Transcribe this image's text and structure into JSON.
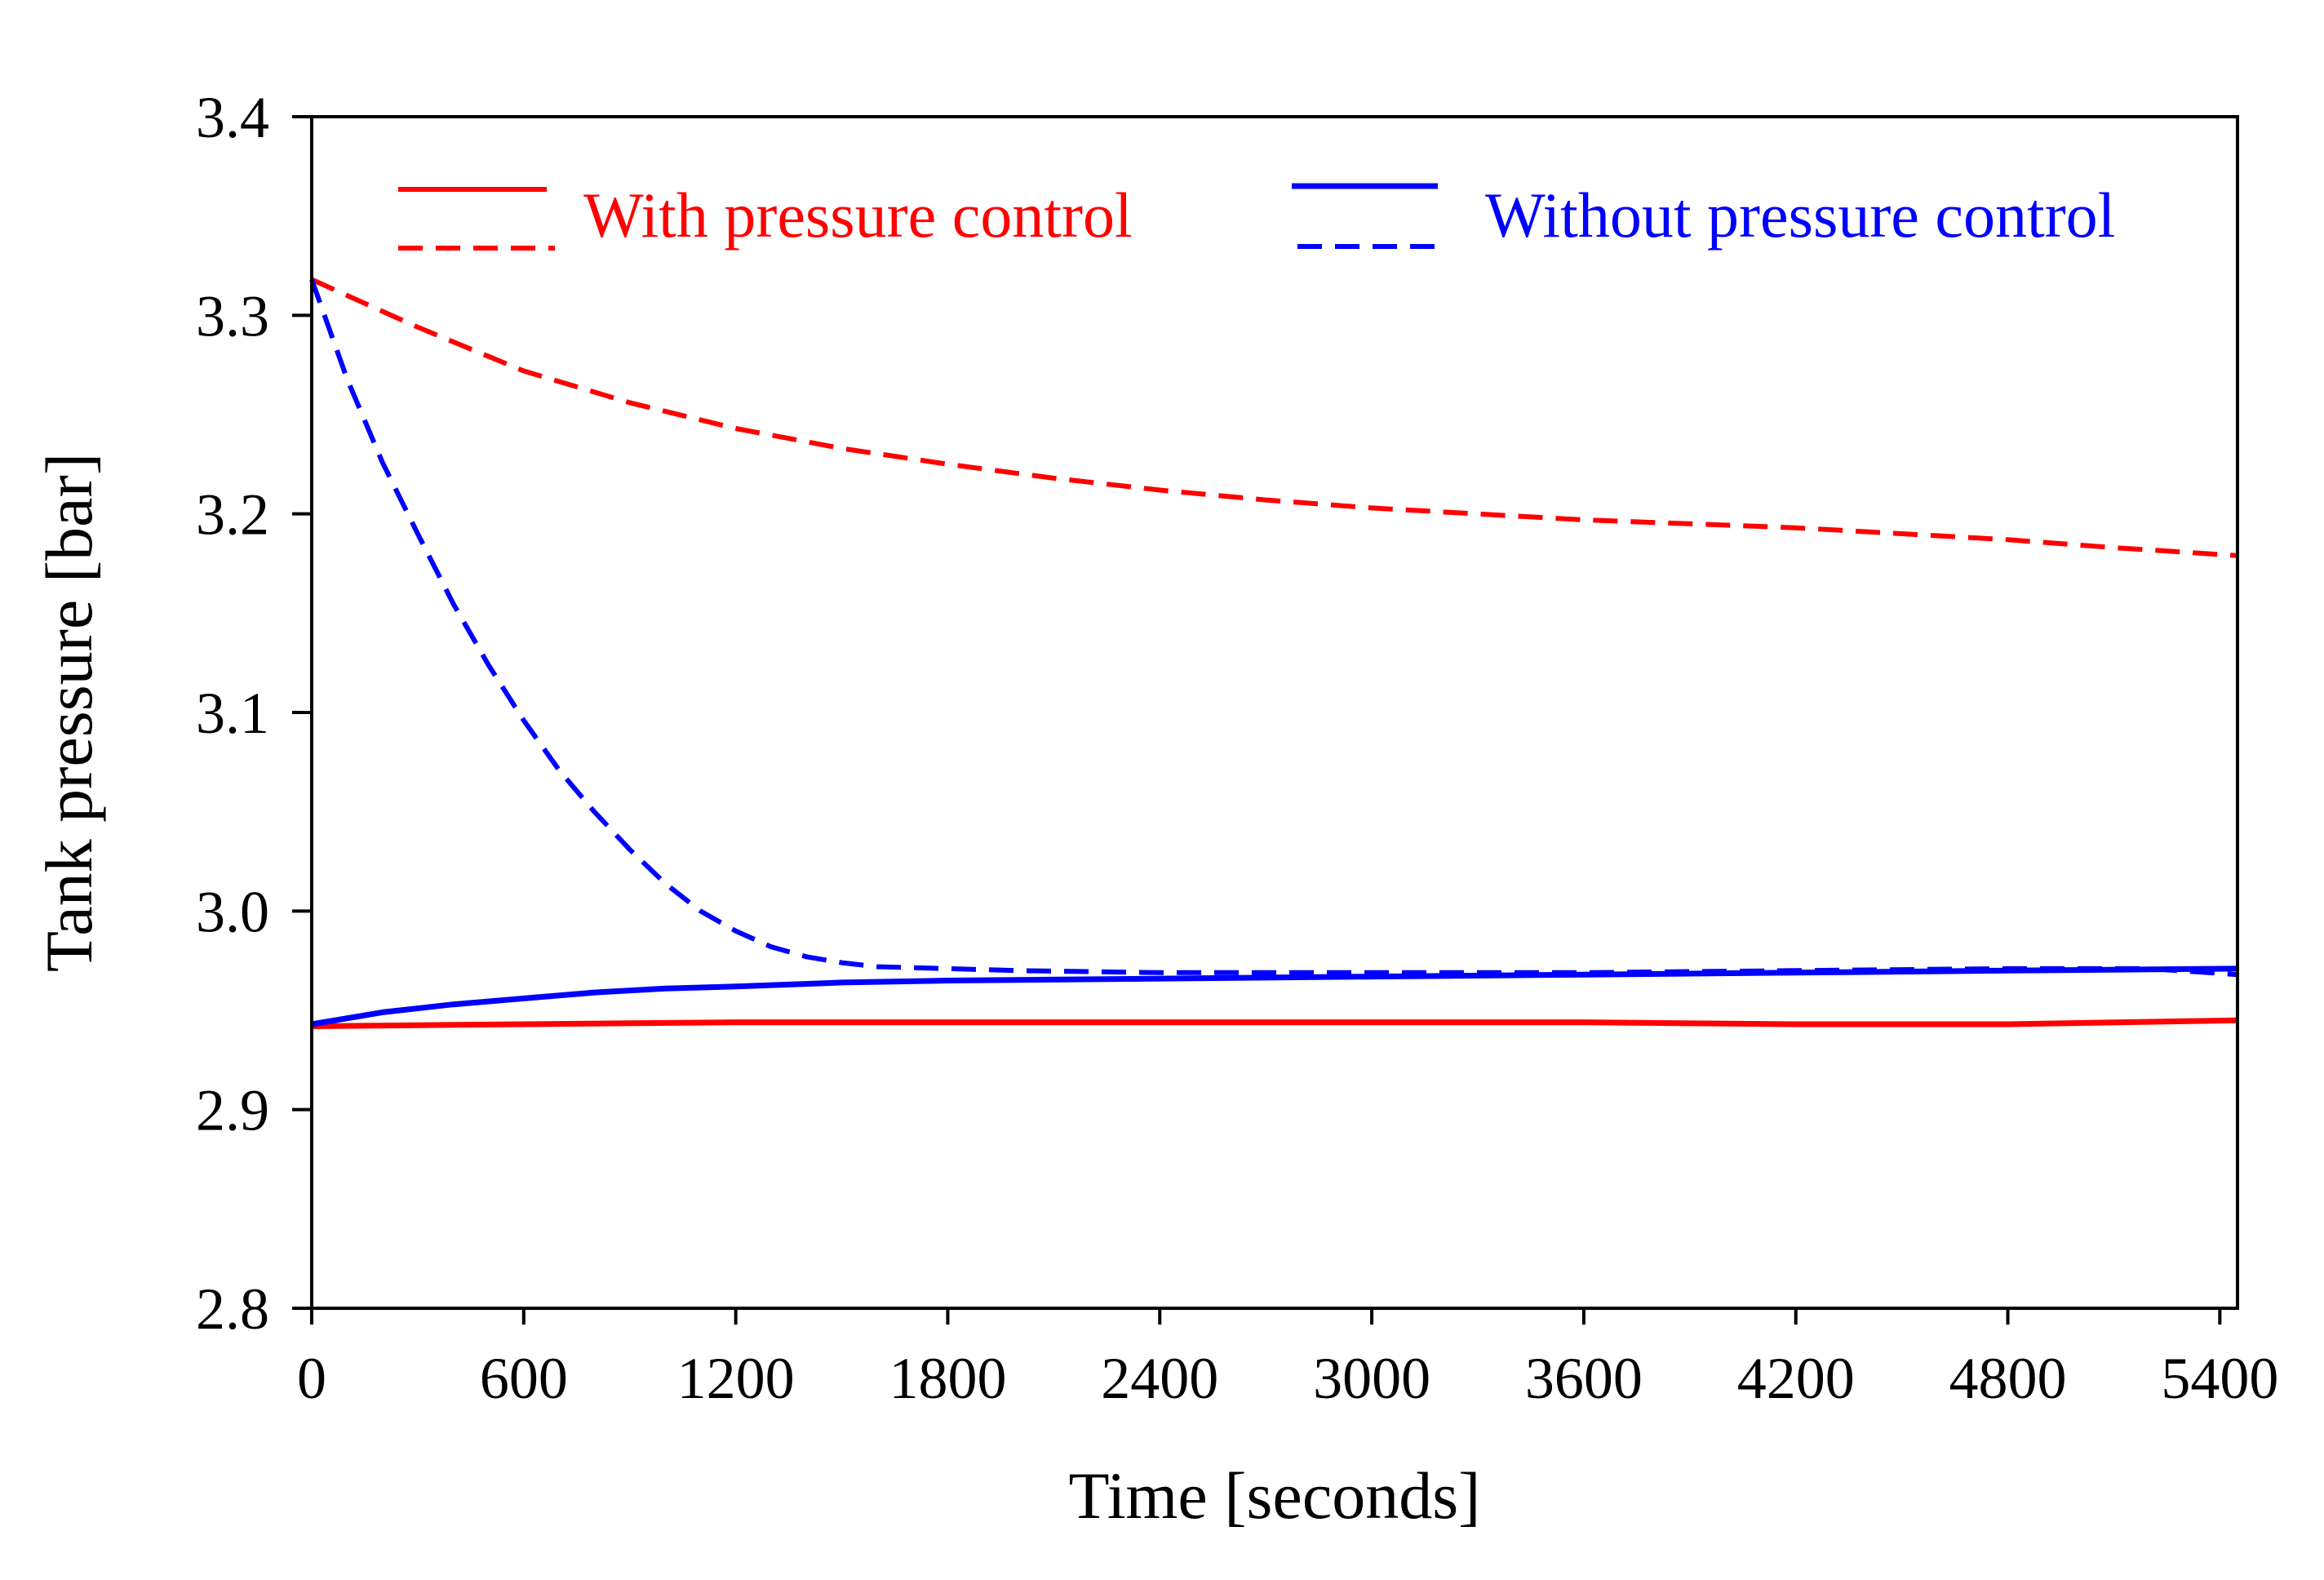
{
  "chart_data": {
    "type": "line",
    "xlabel": "Time [seconds]",
    "ylabel": "Tank pressure [bar]",
    "xlim": [
      0,
      5450
    ],
    "ylim": [
      2.8,
      3.4
    ],
    "xticks": [
      0,
      600,
      1200,
      1800,
      2400,
      3000,
      3600,
      4200,
      4800,
      5400
    ],
    "yticks": [
      "2.8",
      "2.9",
      "3.0",
      "3.1",
      "3.2",
      "3.3",
      "3.4"
    ],
    "grid": false,
    "legend_position": "top",
    "legend": [
      {
        "label": "With pressure control",
        "color": "#ff0000"
      },
      {
        "label": "Without pressure control",
        "color": "#0000ff"
      }
    ],
    "series": [
      {
        "name": "With pressure control (solid)",
        "color": "#ff0000",
        "dash": false,
        "x": [
          0,
          600,
          1200,
          1800,
          2400,
          3000,
          3600,
          4200,
          4800,
          5450
        ],
        "y": [
          2.942,
          2.943,
          2.944,
          2.944,
          2.944,
          2.944,
          2.944,
          2.943,
          2.943,
          2.945
        ]
      },
      {
        "name": "With pressure control (dashed)",
        "color": "#ff0000",
        "dash": true,
        "x": [
          0,
          300,
          600,
          900,
          1200,
          1500,
          1800,
          2100,
          2400,
          2700,
          3000,
          3300,
          3600,
          3900,
          4200,
          4500,
          4800,
          5100,
          5450
        ],
        "y": [
          3.318,
          3.294,
          3.272,
          3.256,
          3.243,
          3.233,
          3.225,
          3.218,
          3.212,
          3.207,
          3.203,
          3.2,
          3.197,
          3.195,
          3.193,
          3.19,
          3.187,
          3.183,
          3.179
        ]
      },
      {
        "name": "Without pressure control (solid)",
        "color": "#0000ff",
        "dash": false,
        "x": [
          0,
          200,
          400,
          600,
          800,
          1000,
          1200,
          1500,
          1800,
          2400,
          3000,
          3600,
          4200,
          4800,
          5450
        ],
        "y": [
          2.943,
          2.949,
          2.953,
          2.956,
          2.959,
          2.961,
          2.962,
          2.964,
          2.965,
          2.966,
          2.967,
          2.968,
          2.969,
          2.97,
          2.971
        ]
      },
      {
        "name": "Without pressure control (dashed)",
        "color": "#0000ff",
        "dash": true,
        "x": [
          0,
          100,
          200,
          300,
          400,
          500,
          600,
          700,
          800,
          900,
          1000,
          1100,
          1200,
          1300,
          1400,
          1500,
          1600,
          1800,
          2000,
          2400,
          3000,
          3600,
          4200,
          4800,
          5200,
          5450
        ],
        "y": [
          3.318,
          3.268,
          3.226,
          3.19,
          3.155,
          3.124,
          3.096,
          3.071,
          3.05,
          3.031,
          3.014,
          3.0,
          2.99,
          2.982,
          2.977,
          2.974,
          2.972,
          2.971,
          2.97,
          2.969,
          2.969,
          2.969,
          2.97,
          2.971,
          2.971,
          2.968
        ]
      }
    ]
  }
}
